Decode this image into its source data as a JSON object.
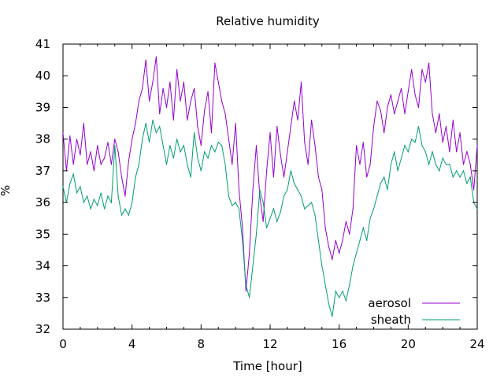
{
  "chart_data": {
    "type": "line",
    "title": "Relative humidity",
    "xlabel": "Time [hour]",
    "ylabel": "%",
    "xlim": [
      0,
      24
    ],
    "ylim": [
      32,
      41
    ],
    "xticks": [
      0,
      4,
      8,
      12,
      16,
      20,
      24
    ],
    "yticks": [
      32,
      33,
      34,
      35,
      36,
      37,
      38,
      39,
      40,
      41
    ],
    "grid": false,
    "legend_position": "bottom-right",
    "series": [
      {
        "name": "aerosol",
        "color": "#9400d3",
        "x": [
          0.0,
          0.2,
          0.4,
          0.6,
          0.8,
          1.0,
          1.2,
          1.4,
          1.6,
          1.8,
          2.0,
          2.2,
          2.4,
          2.6,
          2.8,
          3.0,
          3.2,
          3.4,
          3.6,
          3.8,
          4.0,
          4.2,
          4.4,
          4.6,
          4.8,
          5.0,
          5.2,
          5.4,
          5.6,
          5.8,
          6.0,
          6.2,
          6.4,
          6.6,
          6.8,
          7.0,
          7.2,
          7.4,
          7.6,
          7.8,
          8.0,
          8.2,
          8.4,
          8.6,
          8.8,
          9.0,
          9.2,
          9.4,
          9.6,
          9.8,
          10.0,
          10.2,
          10.4,
          10.6,
          10.8,
          11.0,
          11.2,
          11.4,
          11.6,
          11.8,
          12.0,
          12.2,
          12.4,
          12.6,
          12.8,
          13.0,
          13.2,
          13.4,
          13.6,
          13.8,
          14.0,
          14.2,
          14.4,
          14.6,
          14.8,
          15.0,
          15.2,
          15.4,
          15.6,
          15.8,
          16.0,
          16.2,
          16.4,
          16.6,
          16.8,
          17.0,
          17.2,
          17.4,
          17.6,
          17.8,
          18.0,
          18.2,
          18.4,
          18.6,
          18.8,
          19.0,
          19.2,
          19.4,
          19.6,
          19.8,
          20.0,
          20.2,
          20.4,
          20.6,
          20.8,
          21.0,
          21.2,
          21.4,
          21.6,
          21.8,
          22.0,
          22.2,
          22.4,
          22.6,
          22.8,
          23.0,
          23.2,
          23.4,
          23.6,
          23.8,
          24.0
        ],
        "y": [
          38.2,
          37.0,
          38.1,
          37.2,
          38.0,
          37.5,
          38.5,
          37.2,
          37.6,
          37.0,
          37.8,
          37.2,
          37.4,
          37.9,
          37.2,
          38.0,
          37.6,
          36.8,
          36.2,
          37.3,
          38.0,
          38.5,
          39.2,
          39.6,
          40.5,
          39.2,
          39.8,
          40.6,
          38.8,
          39.6,
          39.0,
          39.8,
          38.6,
          40.2,
          39.2,
          39.8,
          38.6,
          39.2,
          39.6,
          38.4,
          37.8,
          38.9,
          39.5,
          38.2,
          40.4,
          39.8,
          39.2,
          38.8,
          38.0,
          37.2,
          38.5,
          36.4,
          35.2,
          33.2,
          34.4,
          36.4,
          37.8,
          36.2,
          35.4,
          37.0,
          38.2,
          36.8,
          38.4,
          37.5,
          36.8,
          37.6,
          38.4,
          39.2,
          38.6,
          39.8,
          37.9,
          37.2,
          38.6,
          37.8,
          36.8,
          36.4,
          35.2,
          34.6,
          34.2,
          34.8,
          34.4,
          34.8,
          35.4,
          35.0,
          35.8,
          37.8,
          37.2,
          37.9,
          36.8,
          37.2,
          38.4,
          39.2,
          38.9,
          38.2,
          39.0,
          39.4,
          38.8,
          39.2,
          39.6,
          38.8,
          39.5,
          40.2,
          39.4,
          39.0,
          40.2,
          39.8,
          40.4,
          38.8,
          38.2,
          38.8,
          37.9,
          38.4,
          37.6,
          38.6,
          37.6,
          38.2,
          37.2,
          37.6,
          37.2,
          36.4,
          37.8
        ],
        "linewidth": 1
      },
      {
        "name": "sheath",
        "color": "#009e73",
        "x": [
          0.0,
          0.2,
          0.4,
          0.6,
          0.8,
          1.0,
          1.2,
          1.4,
          1.6,
          1.8,
          2.0,
          2.2,
          2.4,
          2.6,
          2.8,
          3.0,
          3.2,
          3.4,
          3.6,
          3.8,
          4.0,
          4.2,
          4.4,
          4.6,
          4.8,
          5.0,
          5.2,
          5.4,
          5.6,
          5.8,
          6.0,
          6.2,
          6.4,
          6.6,
          6.8,
          7.0,
          7.2,
          7.4,
          7.6,
          7.8,
          8.0,
          8.2,
          8.4,
          8.6,
          8.8,
          9.0,
          9.2,
          9.4,
          9.6,
          9.8,
          10.0,
          10.2,
          10.4,
          10.6,
          10.8,
          11.0,
          11.2,
          11.4,
          11.6,
          11.8,
          12.0,
          12.2,
          12.4,
          12.6,
          12.8,
          13.0,
          13.2,
          13.4,
          13.6,
          13.8,
          14.0,
          14.2,
          14.4,
          14.6,
          14.8,
          15.0,
          15.2,
          15.4,
          15.6,
          15.8,
          16.0,
          16.2,
          16.4,
          16.6,
          16.8,
          17.0,
          17.2,
          17.4,
          17.6,
          17.8,
          18.0,
          18.2,
          18.4,
          18.6,
          18.8,
          19.0,
          19.2,
          19.4,
          19.6,
          19.8,
          20.0,
          20.2,
          20.4,
          20.6,
          20.8,
          21.0,
          21.2,
          21.4,
          21.6,
          21.8,
          22.0,
          22.2,
          22.4,
          22.6,
          22.8,
          23.0,
          23.2,
          23.4,
          23.6,
          23.8,
          24.0
        ],
        "y": [
          36.5,
          36.0,
          36.6,
          36.9,
          36.3,
          36.5,
          36.0,
          36.2,
          35.8,
          36.1,
          35.9,
          36.3,
          35.8,
          36.2,
          36.0,
          37.8,
          36.2,
          35.6,
          35.8,
          35.6,
          36.0,
          36.8,
          37.2,
          38.0,
          38.5,
          37.9,
          38.6,
          38.2,
          38.4,
          37.8,
          37.2,
          37.8,
          37.4,
          38.0,
          37.6,
          37.8,
          37.2,
          36.8,
          38.2,
          37.4,
          37.0,
          37.6,
          37.4,
          37.8,
          37.6,
          37.9,
          37.8,
          37.2,
          36.2,
          35.9,
          36.0,
          35.8,
          34.8,
          33.4,
          33.0,
          34.0,
          35.0,
          36.4,
          36.0,
          35.2,
          35.5,
          35.8,
          35.4,
          35.7,
          36.2,
          36.4,
          37.0,
          36.6,
          36.4,
          36.2,
          35.8,
          35.9,
          36.0,
          35.6,
          34.8,
          34.0,
          33.4,
          32.8,
          32.4,
          33.2,
          33.0,
          33.2,
          32.9,
          33.4,
          34.0,
          34.4,
          34.8,
          35.2,
          34.8,
          35.5,
          35.8,
          36.2,
          36.6,
          36.8,
          36.4,
          37.2,
          37.6,
          37.0,
          37.4,
          37.8,
          37.6,
          38.0,
          37.9,
          38.4,
          37.8,
          37.6,
          37.2,
          37.6,
          37.2,
          37.0,
          37.4,
          37.2,
          37.2,
          36.8,
          37.0,
          36.8,
          37.0,
          36.6,
          36.8,
          36.0,
          35.8
        ],
        "linewidth": 1
      }
    ]
  }
}
